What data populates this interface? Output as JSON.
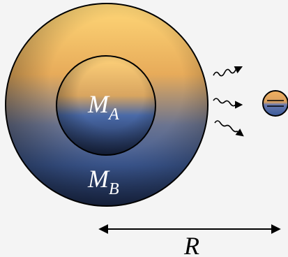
{
  "labels": {
    "inner_mass": {
      "symbol": "M",
      "subscript": "A"
    },
    "outer_mass": {
      "symbol": "M",
      "subscript": "B"
    },
    "distance": "R"
  }
}
